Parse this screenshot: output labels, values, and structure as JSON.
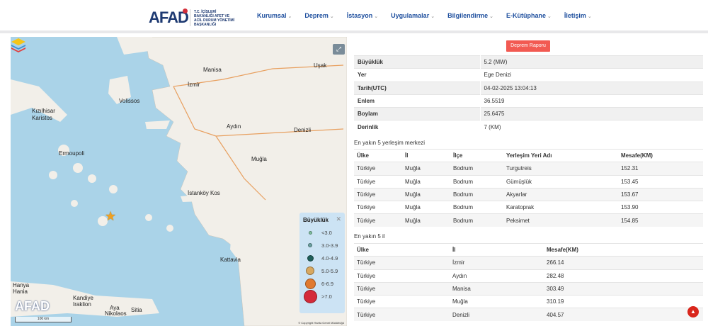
{
  "header": {
    "logo": "AFAD",
    "logo_sub": "T.C. İÇİŞLERİ BAKANLIĞI AFET VE ACİL DURUM YÖNETİMİ BAŞKANLIĞI",
    "nav": [
      "Kurumsal",
      "Deprem",
      "İstasyon",
      "Uygulamalar",
      "Bilgilendirme",
      "E-Kütüphane",
      "İletişim"
    ]
  },
  "map": {
    "labels": {
      "manisa": "Manisa",
      "izmir": "İzmir",
      "usak": "Uşak",
      "volissos": "Volissos",
      "kizilhisar": "Kızılhisar",
      "karistos": "Karistos",
      "ermoupoli": "Ermoupoli",
      "aydin": "Aydın",
      "denizli": "Denizli",
      "mugla": "Muğla",
      "kos": "İstanköy Kos",
      "kattavia": "Kattavia",
      "hanya": "Hanya",
      "hania": "Hania",
      "kandiye": "Kandiye",
      "iraklion": "Iraklion",
      "aya": "Aya",
      "nikolaos": "Nikolaos",
      "sitia": "Sitia"
    },
    "logo": "AFAD",
    "scale": "100 km",
    "copyright": "© Copyright Harita Genel Müdürlüğü",
    "legend": {
      "title": "Büyüklük",
      "items": [
        {
          "label": "<3.0",
          "color": "#7fbf9f"
        },
        {
          "label": "3.0-3.9",
          "color": "#6aa0a0"
        },
        {
          "label": "4.0-4.9",
          "color": "#1f5f5a"
        },
        {
          "label": "5.0-5.9",
          "color": "#d8a860"
        },
        {
          "label": "6-6.9",
          "color": "#e07a30"
        },
        {
          "label": ">7.0",
          "color": "#d42a3a"
        }
      ]
    }
  },
  "panel": {
    "report_button": "Deprem Raporu",
    "info": [
      [
        "Büyüklük",
        "5.2 (MW)"
      ],
      [
        "Yer",
        "Ege Denizi"
      ],
      [
        "Tarih(UTC)",
        "04-02-2025 13:04:13"
      ],
      [
        "Enlem",
        "36.5519"
      ],
      [
        "Boylam",
        "25.6475"
      ],
      [
        "Derinlik",
        "7 (KM)"
      ]
    ],
    "settlements_title": "En yakın 5 yerleşim merkezi",
    "settlements_headers": [
      "Ülke",
      "İl",
      "İlçe",
      "Yerleşim Yeri Adı",
      "Mesafe(KM)"
    ],
    "settlements": [
      [
        "Türkiye",
        "Muğla",
        "Bodrum",
        "Turgutreis",
        "152.31"
      ],
      [
        "Türkiye",
        "Muğla",
        "Bodrum",
        "Gümüşlük",
        "153.45"
      ],
      [
        "Türkiye",
        "Muğla",
        "Bodrum",
        "Akyarlar",
        "153.67"
      ],
      [
        "Türkiye",
        "Muğla",
        "Bodrum",
        "Karatoprak",
        "153.90"
      ],
      [
        "Türkiye",
        "Muğla",
        "Bodrum",
        "Peksimet",
        "154.85"
      ]
    ],
    "provinces_title": "En yakın 5 il",
    "provinces_headers": [
      "Ülke",
      "İl",
      "Mesafe(KM)"
    ],
    "provinces": [
      [
        "Türkiye",
        "İzmir",
        "266.14"
      ],
      [
        "Türkiye",
        "Aydın",
        "282.48"
      ],
      [
        "Türkiye",
        "Manisa",
        "303.49"
      ],
      [
        "Türkiye",
        "Muğla",
        "310.19"
      ],
      [
        "Türkiye",
        "Denizli",
        "404.57"
      ]
    ]
  },
  "colors": {
    "accent": "#1e4f9e",
    "report": "#f25a52",
    "sea": "#aad3e8",
    "land": "#f2efe9"
  }
}
